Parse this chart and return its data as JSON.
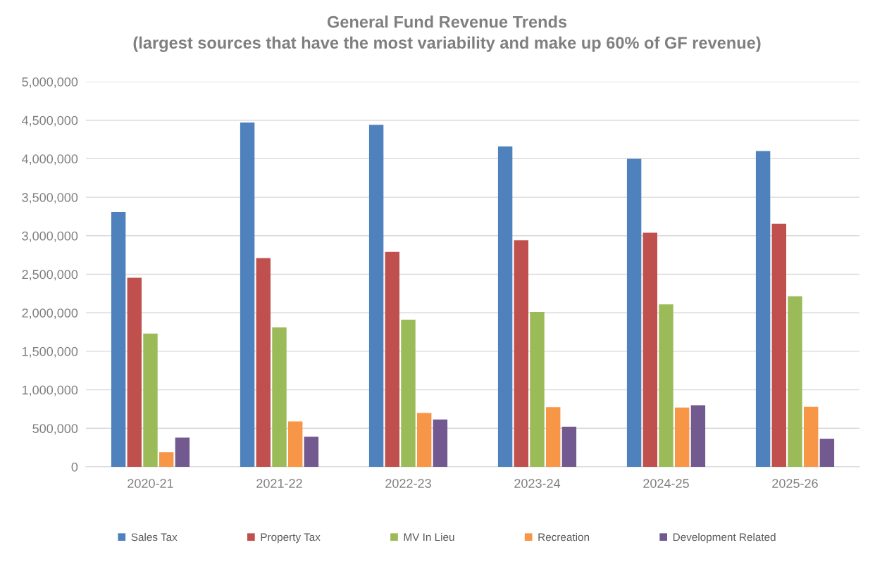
{
  "chart_data": {
    "type": "bar",
    "title": "General Fund Revenue Trends\n(largest sources that have the most variability and make up 60% of GF revenue)",
    "categories": [
      "2020-21",
      "2021-22",
      "2022-23",
      "2023-24",
      "2024-25",
      "2025-26"
    ],
    "series": [
      {
        "name": "Sales Tax",
        "color": "#4f81bd",
        "values": [
          3310000,
          4470000,
          4440000,
          4160000,
          4000000,
          4100000
        ]
      },
      {
        "name": "Property Tax",
        "color": "#c0504d",
        "values": [
          2455000,
          2710000,
          2790000,
          2940000,
          3040000,
          3155000
        ]
      },
      {
        "name": "MV In Lieu",
        "color": "#9bbb59",
        "values": [
          1730000,
          1810000,
          1910000,
          2010000,
          2110000,
          2215000
        ]
      },
      {
        "name": "Recreation",
        "color": "#f79646",
        "values": [
          190000,
          590000,
          700000,
          775000,
          770000,
          780000
        ]
      },
      {
        "name": "Development Related",
        "color": "#725990",
        "values": [
          380000,
          390000,
          615000,
          520000,
          800000,
          365000
        ]
      }
    ],
    "ylim": [
      0,
      5000000
    ],
    "yticks": [
      {
        "value": 0,
        "label": "0"
      },
      {
        "value": 500000,
        "label": "500,000"
      },
      {
        "value": 1000000,
        "label": "1,000,000"
      },
      {
        "value": 1500000,
        "label": "1,500,000"
      },
      {
        "value": 2000000,
        "label": "2,000,000"
      },
      {
        "value": 2500000,
        "label": "2,500,000"
      },
      {
        "value": 3000000,
        "label": "3,000,000"
      },
      {
        "value": 3500000,
        "label": "3,500,000"
      },
      {
        "value": 4000000,
        "label": "4,000,000"
      },
      {
        "value": 4500000,
        "label": "4,500,000"
      },
      {
        "value": 5000000,
        "label": "5,000,000"
      }
    ],
    "grid": "y",
    "legend": "bottom"
  }
}
